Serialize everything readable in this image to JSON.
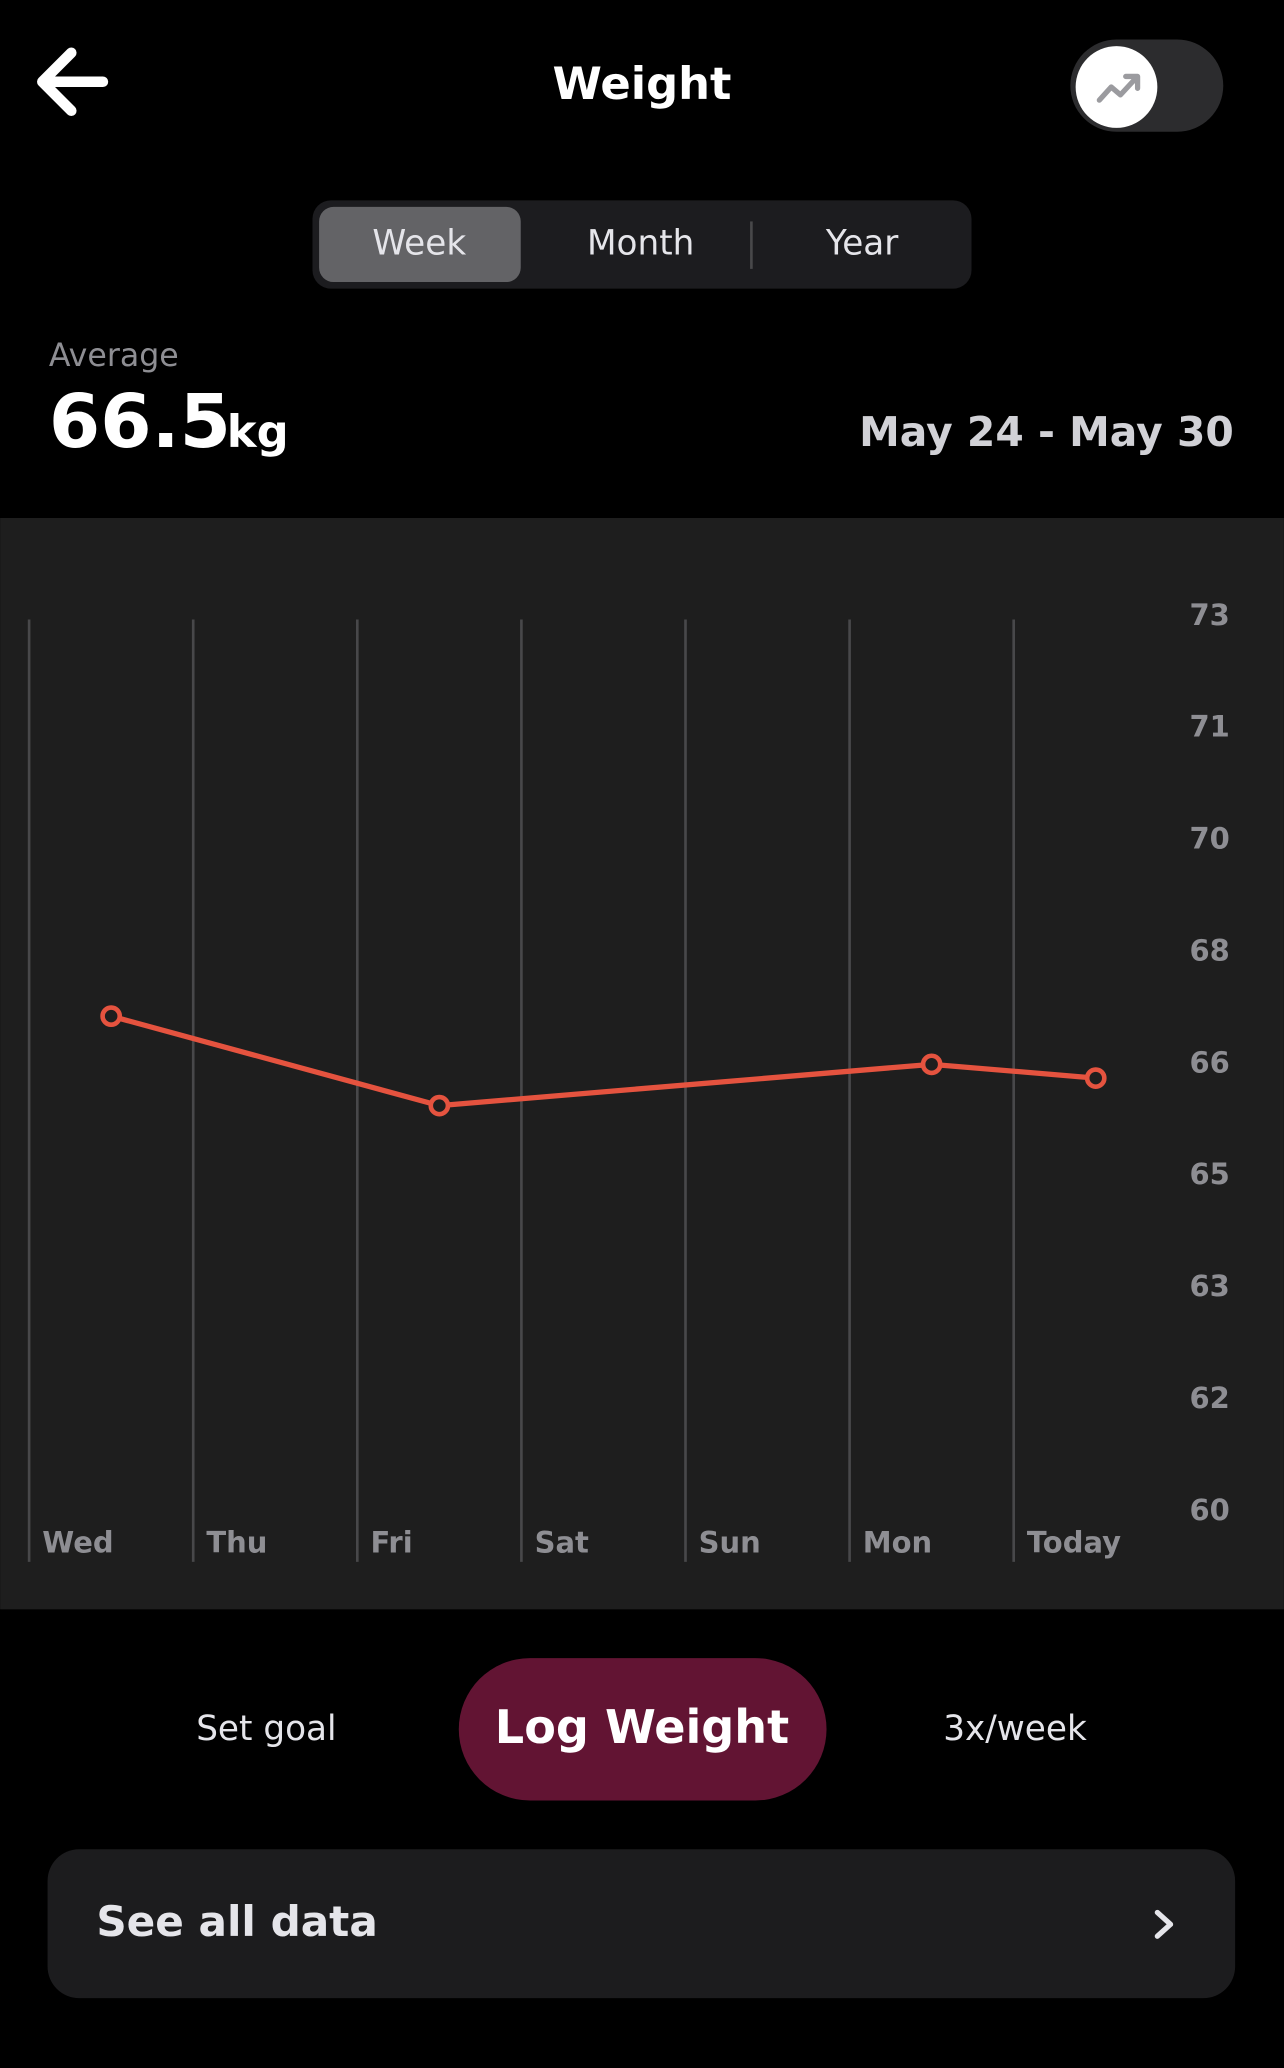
{
  "header": {
    "title": "Weight"
  },
  "tabs": [
    "Week",
    "Month",
    "Year"
  ],
  "summary": {
    "label": "Average",
    "value": 66.5,
    "unit": "kg",
    "range": "May 24 - May 30"
  },
  "chart_data": {
    "type": "line",
    "categories": [
      "Wed",
      "Thu",
      "Fri",
      "Sat",
      "Sun",
      "Mon",
      "Today"
    ],
    "values": [
      67.2,
      null,
      65.9,
      null,
      null,
      66.5,
      66.3
    ],
    "color": "#e5533f",
    "ylim": [
      60,
      73
    ],
    "yticks": [
      {
        "value": 60,
        "label": "60"
      },
      {
        "value": 61.625,
        "label": "62"
      },
      {
        "value": 63.25,
        "label": "63"
      },
      {
        "value": 64.875,
        "label": "65"
      },
      {
        "value": 66.5,
        "label": "66"
      },
      {
        "value": 68.125,
        "label": "68"
      },
      {
        "value": 69.75,
        "label": "70"
      },
      {
        "value": 71.375,
        "label": "71"
      },
      {
        "value": 73,
        "label": "73"
      }
    ],
    "grid": true
  },
  "actions": {
    "set_goal": "Set goal",
    "log": "Log Weight",
    "frequency": "3x/week"
  },
  "see_all": "See all data"
}
